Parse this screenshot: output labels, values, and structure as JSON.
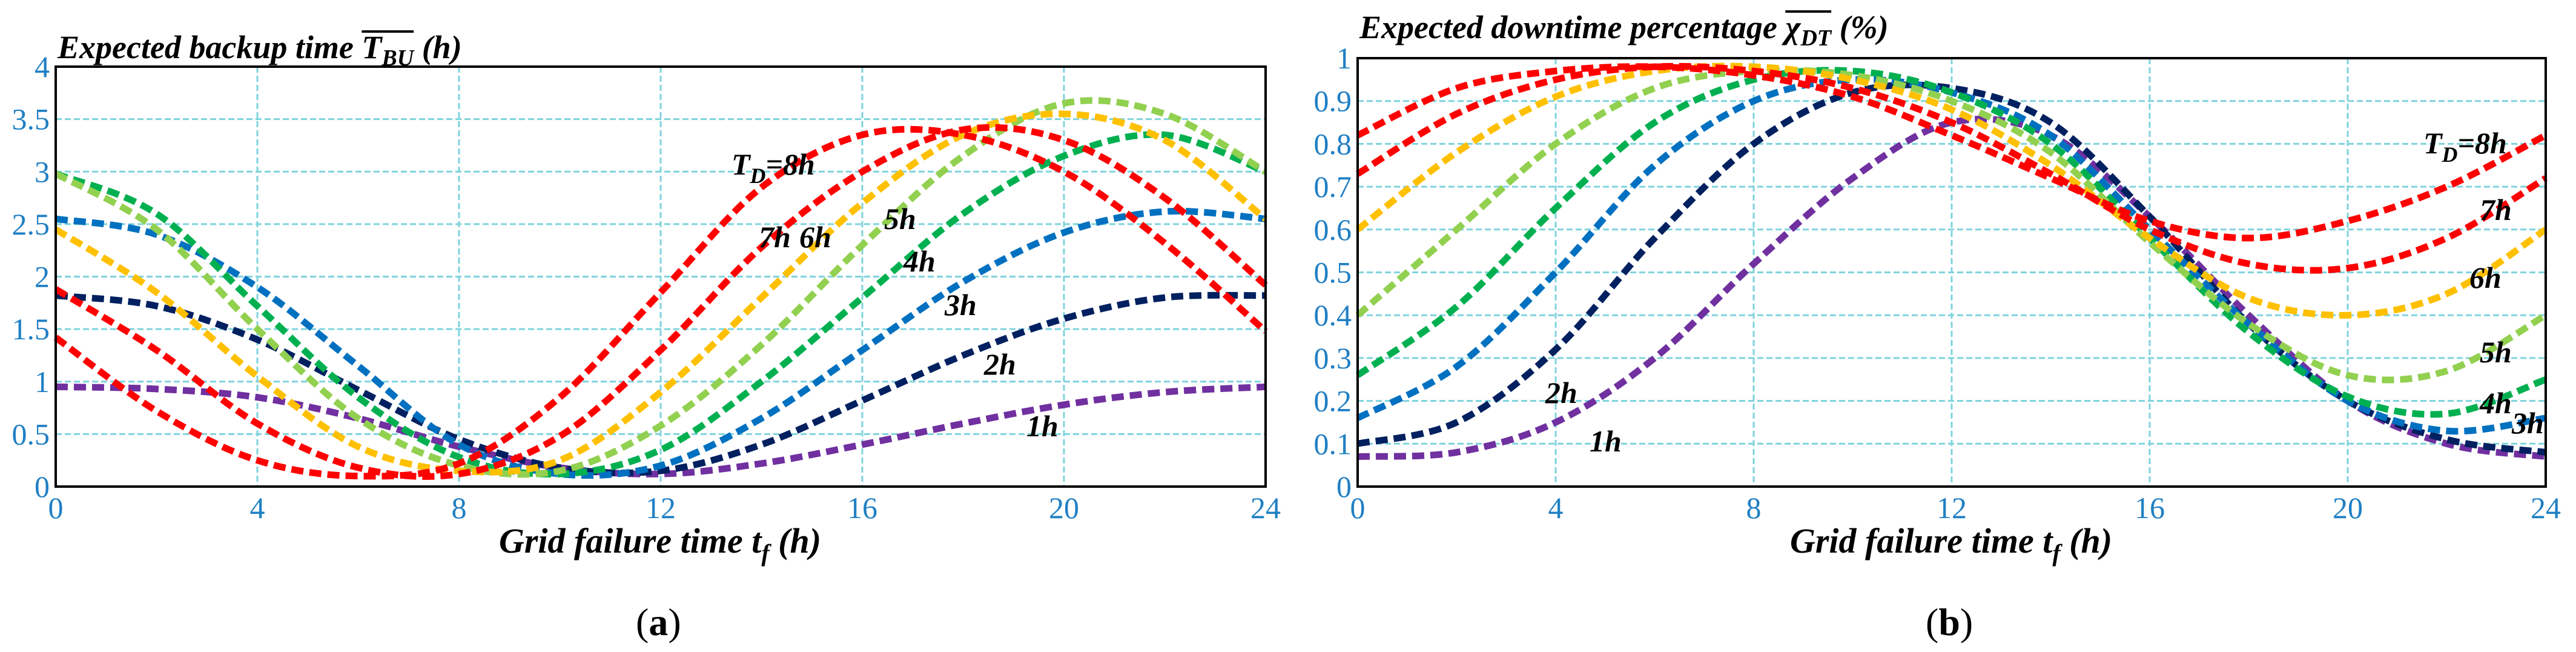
{
  "chart_data": [
    {
      "type": "line",
      "panel": "(a)",
      "caption_open": "(",
      "caption_letter": "a",
      "caption_close": ")",
      "title_prefix": "Expected backup time ",
      "title_symbol": "T",
      "title_sub": "BU",
      "title_unit": " (h)",
      "xlabel_prefix": "Grid failure time ",
      "xlabel_symbol": "t",
      "xlabel_sub": "f",
      "xlabel_unit": " (h)",
      "xlim": [
        0,
        24
      ],
      "ylim": [
        0,
        4
      ],
      "xticks": [
        "0",
        "4",
        "8",
        "12",
        "16",
        "20",
        "24"
      ],
      "yticks": [
        "0",
        "0.5",
        "1",
        "1.5",
        "2",
        "2.5",
        "3",
        "3.5",
        "4"
      ],
      "x": [
        0,
        2,
        4,
        6,
        8,
        10,
        12,
        14,
        16,
        18,
        20,
        22,
        24
      ],
      "series": [
        {
          "name": "1h",
          "label": "1h",
          "color": "#7030a0",
          "values": [
            0.95,
            0.93,
            0.85,
            0.65,
            0.38,
            0.18,
            0.12,
            0.22,
            0.4,
            0.6,
            0.78,
            0.9,
            0.95
          ]
        },
        {
          "name": "2h",
          "label": "2h",
          "color": "#002060",
          "values": [
            1.82,
            1.72,
            1.4,
            0.92,
            0.45,
            0.18,
            0.15,
            0.4,
            0.82,
            1.25,
            1.6,
            1.8,
            1.82
          ]
        },
        {
          "name": "3h",
          "label": "3h",
          "color": "#0070c0",
          "values": [
            2.55,
            2.4,
            1.9,
            1.15,
            0.4,
            0.12,
            0.2,
            0.65,
            1.3,
            1.95,
            2.42,
            2.62,
            2.55
          ]
        },
        {
          "name": "4h",
          "label": "4h",
          "color": "#00b050",
          "values": [
            2.98,
            2.6,
            1.72,
            0.85,
            0.28,
            0.12,
            0.35,
            1.0,
            1.8,
            2.6,
            3.15,
            3.35,
            3.0
          ]
        },
        {
          "name": "5h",
          "label": "5h",
          "color": "#92d050",
          "values": [
            2.98,
            2.45,
            1.5,
            0.65,
            0.2,
            0.15,
            0.58,
            1.35,
            2.3,
            3.15,
            3.65,
            3.55,
            3.0
          ]
        },
        {
          "name": "6h",
          "label": "6h",
          "color": "#ffc000",
          "values": [
            2.45,
            1.85,
            1.05,
            0.38,
            0.15,
            0.25,
            0.9,
            1.8,
            2.7,
            3.35,
            3.55,
            3.3,
            2.55
          ]
        },
        {
          "name": "7h",
          "label": "7h",
          "color": "#ff0000",
          "values": [
            1.88,
            1.3,
            0.6,
            0.18,
            0.12,
            0.48,
            1.3,
            2.28,
            3.0,
            3.4,
            3.3,
            2.75,
            1.92
          ]
        },
        {
          "name": "8h",
          "label": "T_D=8h",
          "label_prefix": "T",
          "label_sub": "D",
          "label_suffix": "=8h",
          "color": "#ff0000",
          "values": [
            1.42,
            0.72,
            0.25,
            0.1,
            0.22,
            0.85,
            1.85,
            2.85,
            3.35,
            3.35,
            3.0,
            2.32,
            1.48
          ]
        }
      ]
    },
    {
      "type": "line",
      "panel": "(b)",
      "caption_open": "(",
      "caption_letter": "b",
      "caption_close": ")",
      "title_prefix": "Expected downtime percentage ",
      "title_symbol": "χ",
      "title_sub": "DT",
      "title_unit": " (%)",
      "xlabel_prefix": "Grid failure time ",
      "xlabel_symbol": "t",
      "xlabel_sub": "f",
      "xlabel_unit": " (h)",
      "xlim": [
        0,
        24
      ],
      "ylim": [
        0,
        1
      ],
      "xticks": [
        "0",
        "4",
        "8",
        "12",
        "16",
        "20",
        "24"
      ],
      "yticks": [
        "0",
        "0.1",
        "0.2",
        "0.3",
        "0.4",
        "0.5",
        "0.6",
        "0.7",
        "0.8",
        "0.9",
        "1"
      ],
      "x": [
        0,
        2,
        4,
        6,
        8,
        10,
        12,
        14,
        16,
        18,
        20,
        22,
        24
      ],
      "series": [
        {
          "name": "1h",
          "label": "1h",
          "color": "#7030a0",
          "values": [
            0.07,
            0.08,
            0.15,
            0.3,
            0.52,
            0.72,
            0.85,
            0.82,
            0.63,
            0.4,
            0.2,
            0.1,
            0.07
          ]
        },
        {
          "name": "2h",
          "label": "2h",
          "color": "#002060",
          "values": [
            0.1,
            0.15,
            0.32,
            0.58,
            0.8,
            0.92,
            0.93,
            0.85,
            0.63,
            0.38,
            0.2,
            0.11,
            0.08
          ]
        },
        {
          "name": "3h",
          "label": "3h",
          "color": "#0070c0",
          "values": [
            0.16,
            0.28,
            0.5,
            0.75,
            0.9,
            0.95,
            0.92,
            0.82,
            0.6,
            0.38,
            0.2,
            0.13,
            0.16
          ]
        },
        {
          "name": "4h",
          "label": "4h",
          "color": "#00b050",
          "values": [
            0.26,
            0.42,
            0.65,
            0.85,
            0.95,
            0.97,
            0.92,
            0.8,
            0.58,
            0.36,
            0.21,
            0.17,
            0.25
          ]
        },
        {
          "name": "5h",
          "label": "5h",
          "color": "#92d050",
          "values": [
            0.4,
            0.6,
            0.8,
            0.93,
            0.97,
            0.96,
            0.9,
            0.78,
            0.57,
            0.38,
            0.26,
            0.27,
            0.4
          ]
        },
        {
          "name": "6h",
          "label": "6h",
          "color": "#ffc000",
          "values": [
            0.6,
            0.78,
            0.91,
            0.97,
            0.98,
            0.95,
            0.88,
            0.75,
            0.58,
            0.44,
            0.4,
            0.45,
            0.6
          ]
        },
        {
          "name": "7h",
          "label": "7h",
          "color": "#ff0000",
          "values": [
            0.73,
            0.87,
            0.95,
            0.98,
            0.97,
            0.93,
            0.85,
            0.73,
            0.6,
            0.52,
            0.51,
            0.58,
            0.72
          ]
        },
        {
          "name": "8h",
          "label": "T_D=8h",
          "label_prefix": "T",
          "label_sub": "D",
          "label_suffix": "=8h",
          "color": "#ff0000",
          "values": [
            0.82,
            0.93,
            0.97,
            0.98,
            0.96,
            0.91,
            0.82,
            0.72,
            0.62,
            0.58,
            0.62,
            0.7,
            0.82
          ]
        }
      ]
    }
  ]
}
